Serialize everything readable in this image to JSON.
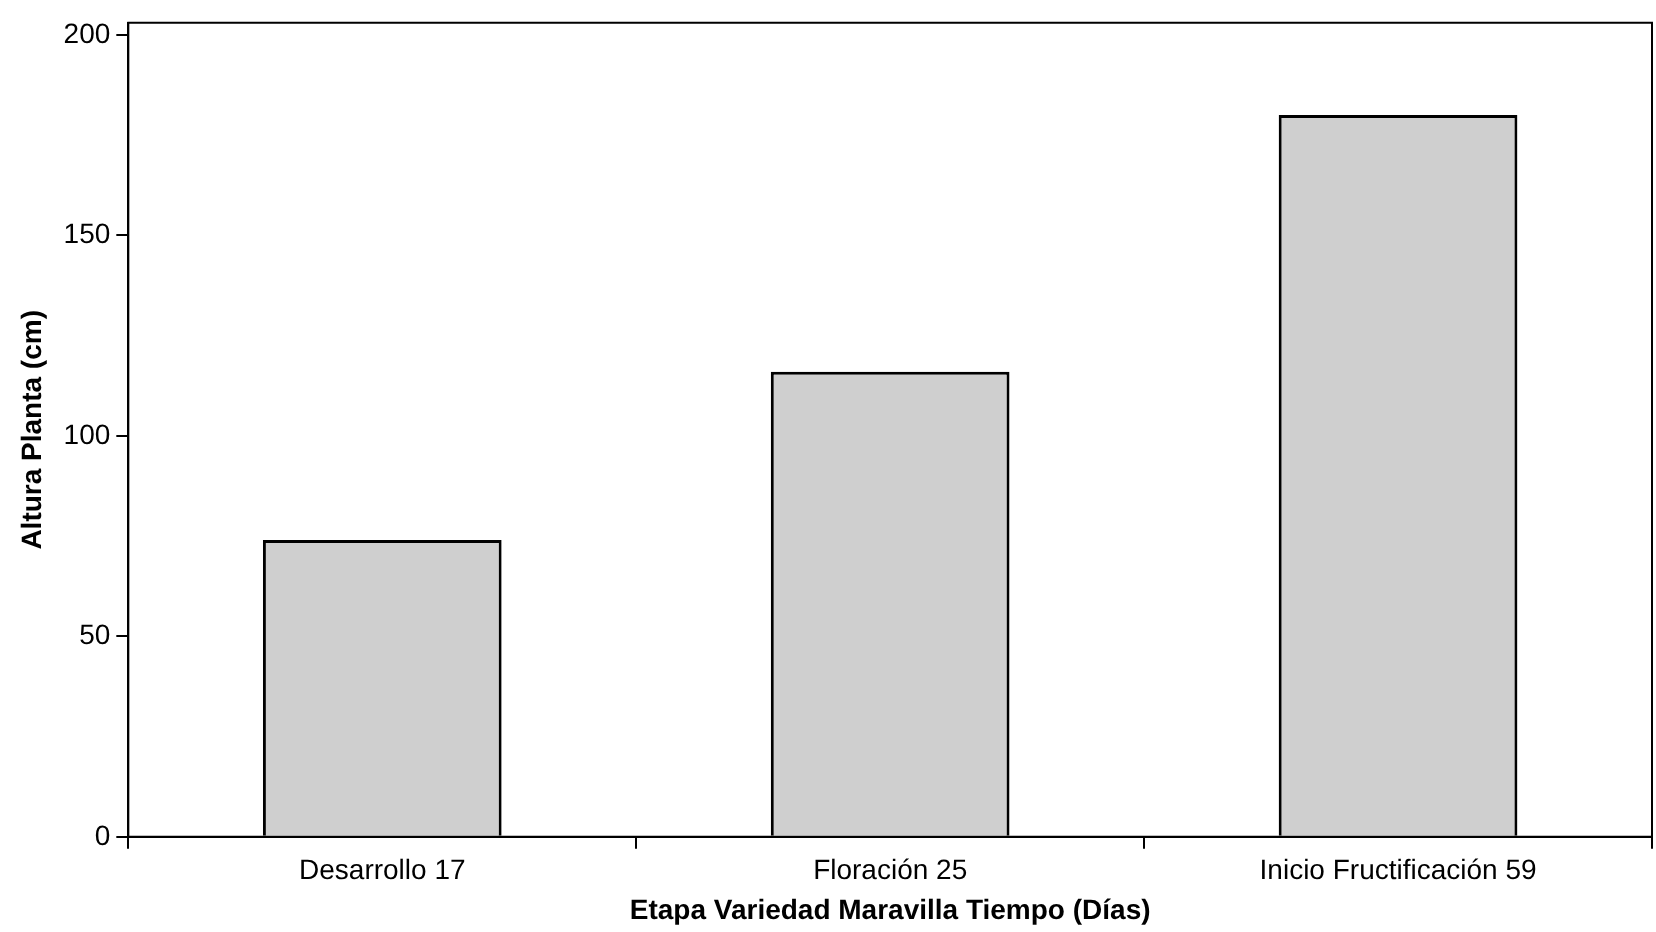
{
  "chart_data": {
    "type": "bar",
    "xlabel": "Etapa Variedad Maravilla Tiempo (Días)",
    "ylabel": "Altura Planta (cm)",
    "categories": [
      "Desarrollo 17",
      "Floración 25",
      "Inicio Fructificación 59"
    ],
    "values": [
      74,
      116,
      180
    ],
    "color": "#cfcfcf",
    "ylim": [
      0,
      203
    ],
    "yticks": [
      0,
      50,
      100,
      150,
      200
    ],
    "grid": false,
    "legend": false
  }
}
